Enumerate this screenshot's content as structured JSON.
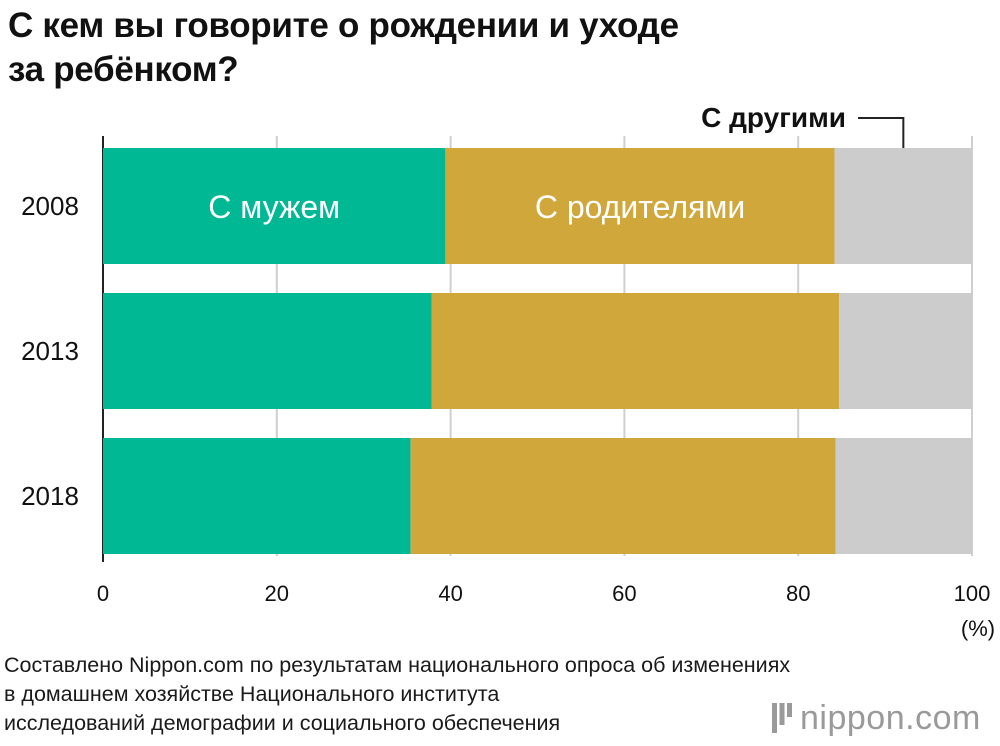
{
  "title_lines": [
    "С кем вы говорите о рождении и уходе",
    "за ребёнком?"
  ],
  "chart_data": {
    "type": "bar",
    "orientation": "horizontal",
    "stacked": true,
    "title": "С кем вы говорите о рождении и уходе за ребёнком?",
    "categories": [
      "2008",
      "2013",
      "2018"
    ],
    "series": [
      {
        "name": "С мужем",
        "values": [
          39.4,
          37.8,
          35.4
        ],
        "color": "#00b894"
      },
      {
        "name": "С родителями",
        "values": [
          44.8,
          46.9,
          48.9
        ],
        "color": "#cfa73a"
      },
      {
        "name": "С другими",
        "values": [
          15.8,
          15.3,
          15.7
        ],
        "color": "#cccccc"
      }
    ],
    "xlim": [
      0,
      100
    ],
    "xticks": [
      "0",
      "20",
      "40",
      "60",
      "80",
      "100"
    ],
    "xunit": "(%)",
    "grid": true,
    "legend": "inline labels on the 2008 bar; callout for С другими"
  },
  "source_lines": [
    "Составлено Nippon.com по результатам национального опроса об изменениях",
    "в домашнем хозяйстве Национального института",
    "исследований демографии и социального обеспечения"
  ],
  "logo": {
    "name": "nippon",
    "dot": ".",
    "suffix": "com",
    "icon": "nippon-mark-icon"
  }
}
